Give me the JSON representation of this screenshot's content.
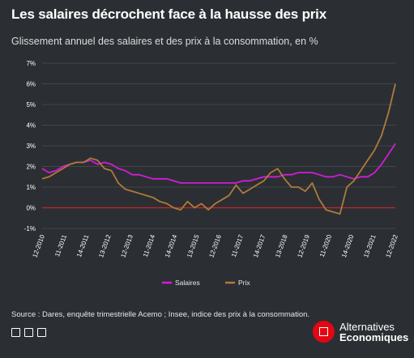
{
  "title": "Les salaires décrochent face à la hausse des prix",
  "subtitle": "Glissement annuel des salaires et des prix à la consommation, en %",
  "source": "Source : Dares, enquête trimestrielle Acemo ; Insee, indice des prix à la consommation.",
  "brand": {
    "line1": "Alternatives",
    "line2": "Economiques"
  },
  "colors": {
    "background": "#2b2f33",
    "salaires": "#d21cd6",
    "prix": "#b07a3a",
    "zero_line": "#c0262b",
    "grid": "#4a4f54",
    "brand_red": "#e30613"
  },
  "chart_data": {
    "type": "line",
    "ylim": [
      -1,
      7
    ],
    "yticks": [
      "-1%",
      "0%",
      "1%",
      "2%",
      "3%",
      "4%",
      "5%",
      "6%",
      "7%"
    ],
    "xticks": [
      "12-2010",
      "11-2011",
      "14-2011",
      "13-2012",
      "12-2013",
      "11-2014",
      "14-2014",
      "13-2015",
      "12-2016",
      "11-2017",
      "14-2017",
      "13-2018",
      "12-2019",
      "11-2020",
      "14-2020",
      "13-2021",
      "12-2022"
    ],
    "legend_position": "bottom-center",
    "series": [
      {
        "name": "Salaires",
        "color": "#d21cd6",
        "x": [
          2010.0,
          2010.25,
          2010.5,
          2010.75,
          2011.0,
          2011.25,
          2011.5,
          2011.75,
          2012.0,
          2012.25,
          2012.5,
          2012.75,
          2013.0,
          2013.25,
          2013.5,
          2013.75,
          2014.0,
          2014.25,
          2014.5,
          2014.75,
          2015.0,
          2015.25,
          2015.5,
          2015.75,
          2016.0,
          2016.25,
          2016.5,
          2016.75,
          2017.0,
          2017.25,
          2017.5,
          2017.75,
          2018.0,
          2018.25,
          2018.5,
          2018.75,
          2019.0,
          2019.25,
          2019.5,
          2019.75,
          2020.0,
          2020.25,
          2020.5,
          2020.75,
          2021.0,
          2021.25,
          2021.5,
          2021.75,
          2022.0,
          2022.25,
          2022.5,
          2022.75
        ],
        "values": [
          1.9,
          1.7,
          1.8,
          2.0,
          2.1,
          2.2,
          2.2,
          2.3,
          2.1,
          2.2,
          2.1,
          1.9,
          1.8,
          1.6,
          1.6,
          1.5,
          1.4,
          1.4,
          1.4,
          1.3,
          1.2,
          1.2,
          1.2,
          1.2,
          1.2,
          1.2,
          1.2,
          1.2,
          1.2,
          1.3,
          1.3,
          1.4,
          1.5,
          1.5,
          1.5,
          1.6,
          1.6,
          1.7,
          1.7,
          1.7,
          1.6,
          1.5,
          1.5,
          1.6,
          1.5,
          1.4,
          1.5,
          1.5,
          1.7,
          2.1,
          2.6,
          3.1
        ]
      },
      {
        "name": "Prix",
        "color": "#b07a3a",
        "x": [
          2010.0,
          2010.25,
          2010.5,
          2010.75,
          2011.0,
          2011.25,
          2011.5,
          2011.75,
          2012.0,
          2012.25,
          2012.5,
          2012.75,
          2013.0,
          2013.25,
          2013.5,
          2013.75,
          2014.0,
          2014.25,
          2014.5,
          2014.75,
          2015.0,
          2015.25,
          2015.5,
          2015.75,
          2016.0,
          2016.25,
          2016.5,
          2016.75,
          2017.0,
          2017.25,
          2017.5,
          2017.75,
          2018.0,
          2018.25,
          2018.5,
          2018.75,
          2019.0,
          2019.25,
          2019.5,
          2019.75,
          2020.0,
          2020.25,
          2020.5,
          2020.75,
          2021.0,
          2021.25,
          2021.5,
          2021.75,
          2022.0,
          2022.25,
          2022.5,
          2022.75
        ],
        "values": [
          1.4,
          1.5,
          1.7,
          1.9,
          2.1,
          2.2,
          2.2,
          2.4,
          2.3,
          1.9,
          1.8,
          1.2,
          0.9,
          0.8,
          0.7,
          0.6,
          0.5,
          0.3,
          0.2,
          0.0,
          -0.1,
          0.3,
          0.0,
          0.2,
          -0.1,
          0.2,
          0.4,
          0.6,
          1.1,
          0.7,
          0.9,
          1.1,
          1.3,
          1.7,
          1.9,
          1.4,
          1.0,
          1.0,
          0.8,
          1.2,
          0.4,
          -0.1,
          -0.2,
          -0.3,
          1.0,
          1.3,
          1.8,
          2.3,
          2.8,
          3.5,
          4.6,
          6.0
        ]
      }
    ]
  }
}
